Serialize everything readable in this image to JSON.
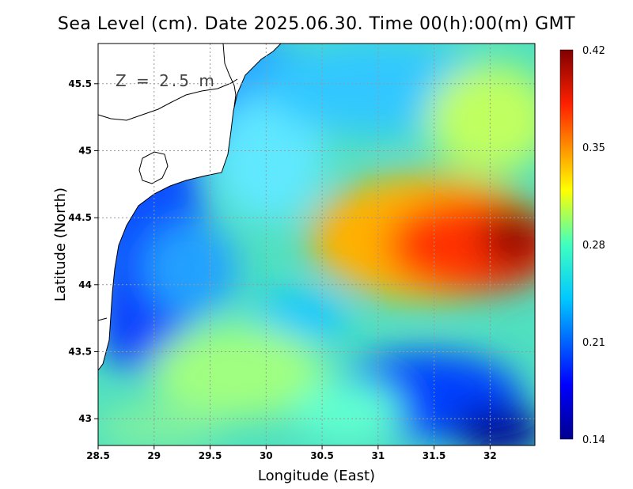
{
  "title": "Sea Level (cm). Date 2025.06.30. Time 00(h):00(m) GMT",
  "depth_label": "Z = 2.5 m",
  "x_axis": {
    "label": "Longitude (East)",
    "ticks": [
      "28.5",
      "29",
      "29.5",
      "30",
      "30.5",
      "31",
      "31.5",
      "32"
    ],
    "range": [
      28.5,
      32.4
    ]
  },
  "y_axis": {
    "label": "Latitude (North)",
    "ticks": [
      "43",
      "43.5",
      "44",
      "44.5",
      "45",
      "45.5"
    ],
    "range": [
      42.8,
      45.8
    ]
  },
  "colorbar": {
    "ticks": [
      "0.14",
      "0.21",
      "0.28",
      "0.35",
      "0.42"
    ],
    "min": 0.14,
    "max": 0.42,
    "stops": [
      "#00008f",
      "#0000ff",
      "#00ffff",
      "#ffff00",
      "#ff0000",
      "#800000"
    ]
  },
  "colors": {
    "land": "#ffffff",
    "coast": "#000000",
    "grid": "#999999"
  }
}
